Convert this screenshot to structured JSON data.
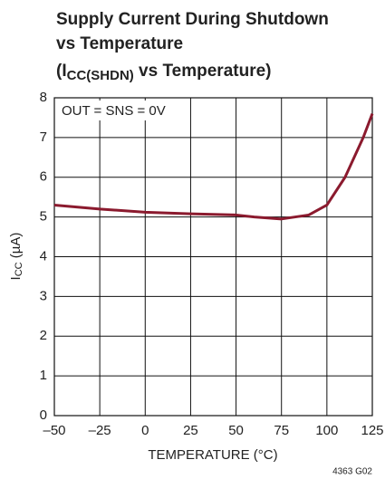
{
  "chart_data": {
    "type": "line",
    "title": [
      "Supply Current During Shutdown",
      "vs Temperature",
      [
        "(I",
        "CC(SHDN)",
        " vs Temperature)"
      ]
    ],
    "xlabel": "TEMPERATURE (°C)",
    "ylabel": [
      "I",
      "CC",
      " (µA)"
    ],
    "annotation": "OUT = SNS = 0V",
    "footnote": "4363 G02",
    "x": [
      -50,
      -25,
      0,
      25,
      50,
      60,
      75,
      90,
      100,
      110,
      120,
      125
    ],
    "series": [
      {
        "color": "#8b1a2e",
        "values": [
          5.3,
          5.2,
          5.12,
          5.08,
          5.05,
          5.0,
          4.95,
          5.05,
          5.3,
          6.0,
          7.0,
          7.6
        ]
      }
    ],
    "xlim": [
      -50,
      125
    ],
    "xticks": [
      {
        "value": -50,
        "label": "–50"
      },
      {
        "value": -25,
        "label": "–25"
      },
      0,
      25,
      50,
      75,
      100,
      125
    ],
    "ylim": [
      0,
      8
    ],
    "yticks": [
      0,
      1,
      2,
      3,
      4,
      5,
      6,
      7,
      8
    ],
    "grid": true
  }
}
